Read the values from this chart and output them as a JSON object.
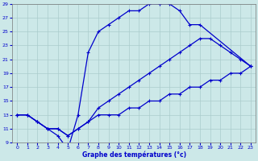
{
  "title": "Graphe des températures (°c)",
  "bg_color": "#cce8e8",
  "grid_color": "#aacccc",
  "line_color": "#0000cc",
  "xlim": [
    -0.5,
    23.5
  ],
  "ylim": [
    9,
    29
  ],
  "xticks": [
    0,
    1,
    2,
    3,
    4,
    5,
    6,
    7,
    8,
    9,
    10,
    11,
    12,
    13,
    14,
    15,
    16,
    17,
    18,
    19,
    20,
    21,
    22,
    23
  ],
  "yticks": [
    9,
    11,
    13,
    15,
    17,
    19,
    21,
    23,
    25,
    27,
    29
  ],
  "line1_x": [
    0,
    1,
    2,
    3,
    4,
    5,
    6,
    7,
    8,
    9,
    10,
    11,
    12,
    13,
    14,
    15,
    16,
    17,
    18,
    23
  ],
  "line1_y": [
    13,
    13,
    12,
    11,
    10,
    8,
    13,
    22,
    25,
    26,
    27,
    28,
    28,
    29,
    29,
    29,
    28,
    26,
    26,
    20
  ],
  "line2_x": [
    0,
    1,
    2,
    3,
    4,
    5,
    6,
    7,
    8,
    9,
    10,
    11,
    12,
    13,
    14,
    15,
    16,
    17,
    18,
    19,
    20,
    21,
    22,
    23
  ],
  "line2_y": [
    13,
    13,
    12,
    11,
    11,
    10,
    11,
    12,
    14,
    15,
    16,
    17,
    18,
    19,
    20,
    21,
    22,
    23,
    24,
    24,
    23,
    22,
    21,
    20
  ],
  "line3_x": [
    0,
    1,
    2,
    3,
    4,
    5,
    6,
    7,
    8,
    9,
    10,
    11,
    12,
    13,
    14,
    15,
    16,
    17,
    18,
    19,
    20,
    21,
    22,
    23
  ],
  "line3_y": [
    13,
    13,
    12,
    11,
    11,
    10,
    11,
    12,
    13,
    13,
    13,
    14,
    14,
    15,
    15,
    16,
    16,
    17,
    17,
    18,
    18,
    19,
    19,
    20
  ]
}
